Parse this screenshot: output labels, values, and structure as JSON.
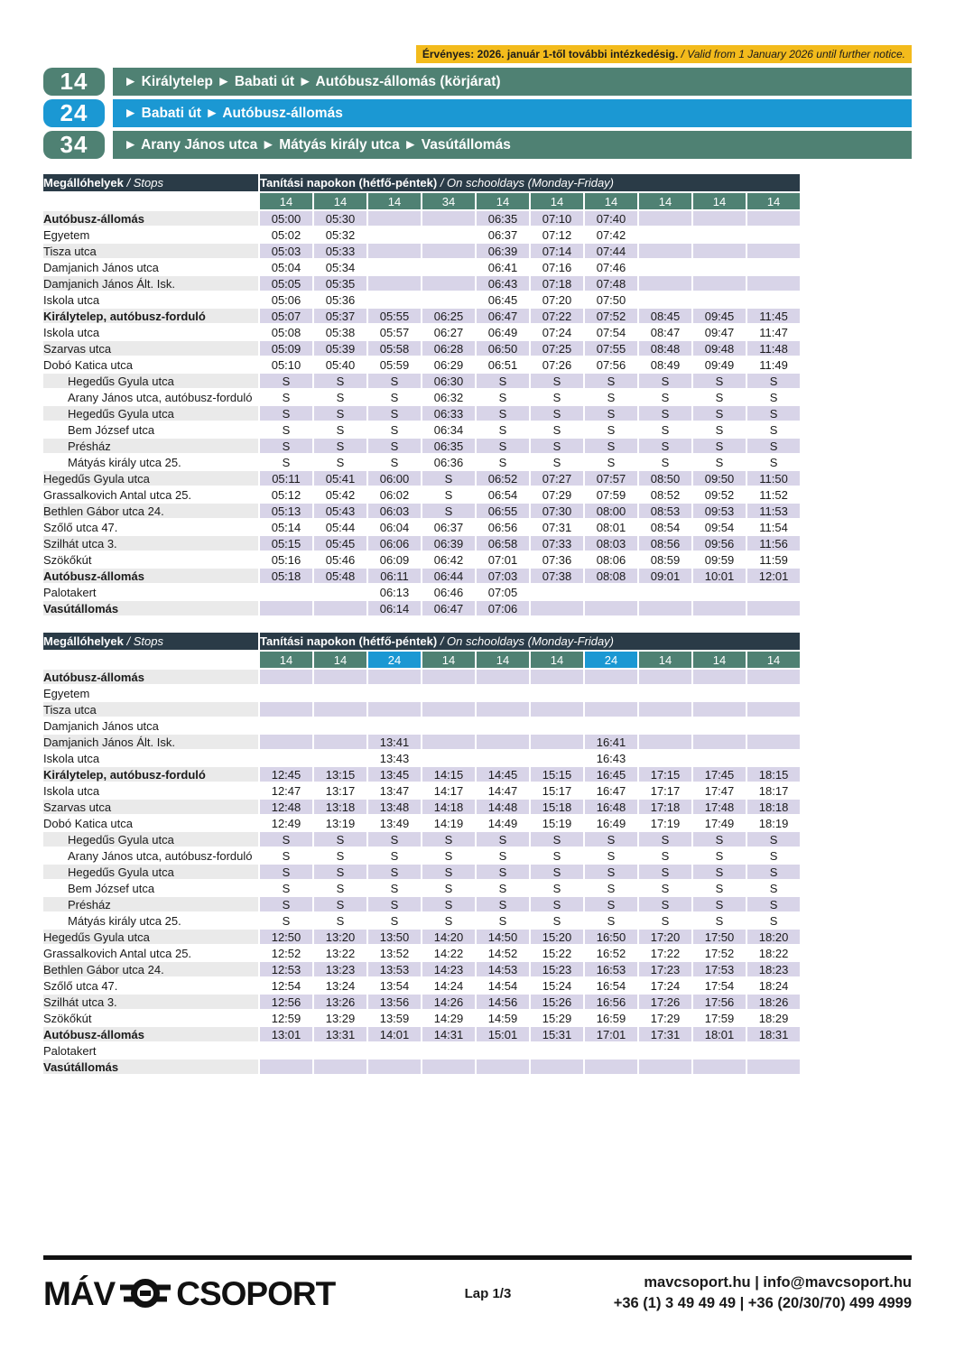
{
  "colors": {
    "teal": "#4F8173",
    "blue": "#1B98D3",
    "dark_header": "#2A3B47",
    "lavender": "#D8D4E8",
    "gray_row": "#EAEAEA",
    "banner_yellow": "#F3BB1C"
  },
  "banner": {
    "hu": "Érvényes: 2026. január 1-től további intézkedésig.",
    "en": " / Valid from 1 January 2026 until further notice."
  },
  "routes": [
    {
      "number": "14",
      "color": "teal",
      "label": "► Királytelep ► Babati út ► Autóbusz-állomás (körjárat)"
    },
    {
      "number": "24",
      "color": "blue",
      "label": "► Babati út ► Autóbusz-állomás"
    },
    {
      "number": "34",
      "color": "teal",
      "label": "► Arany János utca ► Mátyás király utca ► Vasútállomás"
    }
  ],
  "tables": [
    {
      "stops_header": {
        "hu": "Megállóhelyek",
        "en": " / Stops"
      },
      "days_header": {
        "hu": "Tanítási napokon (hétfő-péntek)",
        "en": " / On schooldays (Monday-Friday)"
      },
      "route_numbers": [
        {
          "label": "14",
          "color": "teal"
        },
        {
          "label": "14",
          "color": "teal"
        },
        {
          "label": "14",
          "color": "teal"
        },
        {
          "label": "34",
          "color": "teal"
        },
        {
          "label": "14",
          "color": "teal"
        },
        {
          "label": "14",
          "color": "teal"
        },
        {
          "label": "14",
          "color": "teal"
        },
        {
          "label": "14",
          "color": "teal"
        },
        {
          "label": "14",
          "color": "teal"
        },
        {
          "label": "14",
          "color": "teal"
        }
      ],
      "rows": [
        {
          "stop": "Autóbusz-állomás",
          "style": "bold",
          "times": [
            "05:00",
            "05:30",
            "",
            "",
            "06:35",
            "07:10",
            "07:40",
            "",
            "",
            ""
          ]
        },
        {
          "stop": "Egyetem",
          "style": "",
          "times": [
            "05:02",
            "05:32",
            "",
            "",
            "06:37",
            "07:12",
            "07:42",
            "",
            "",
            ""
          ]
        },
        {
          "stop": "Tisza utca",
          "style": "",
          "times": [
            "05:03",
            "05:33",
            "",
            "",
            "06:39",
            "07:14",
            "07:44",
            "",
            "",
            ""
          ]
        },
        {
          "stop": "Damjanich János utca",
          "style": "",
          "times": [
            "05:04",
            "05:34",
            "",
            "",
            "06:41",
            "07:16",
            "07:46",
            "",
            "",
            ""
          ]
        },
        {
          "stop": "Damjanich János Ált. Isk.",
          "style": "",
          "times": [
            "05:05",
            "05:35",
            "",
            "",
            "06:43",
            "07:18",
            "07:48",
            "",
            "",
            ""
          ]
        },
        {
          "stop": "Iskola utca",
          "style": "",
          "times": [
            "05:06",
            "05:36",
            "",
            "",
            "06:45",
            "07:20",
            "07:50",
            "",
            "",
            ""
          ]
        },
        {
          "stop": "Királytelep, autóbusz-forduló",
          "style": "bold",
          "times": [
            "05:07",
            "05:37",
            "05:55",
            "06:25",
            "06:47",
            "07:22",
            "07:52",
            "08:45",
            "09:45",
            "11:45"
          ]
        },
        {
          "stop": "Iskola utca",
          "style": "",
          "times": [
            "05:08",
            "05:38",
            "05:57",
            "06:27",
            "06:49",
            "07:24",
            "07:54",
            "08:47",
            "09:47",
            "11:47"
          ]
        },
        {
          "stop": "Szarvas utca",
          "style": "",
          "times": [
            "05:09",
            "05:39",
            "05:58",
            "06:28",
            "06:50",
            "07:25",
            "07:55",
            "08:48",
            "09:48",
            "11:48"
          ]
        },
        {
          "stop": "Dobó Katica utca",
          "style": "",
          "times": [
            "05:10",
            "05:40",
            "05:59",
            "06:29",
            "06:51",
            "07:26",
            "07:56",
            "08:49",
            "09:49",
            "11:49"
          ]
        },
        {
          "stop": "Hegedűs Gyula utca",
          "style": "indent",
          "times": [
            "S",
            "S",
            "S",
            "06:30",
            "S",
            "S",
            "S",
            "S",
            "S",
            "S"
          ]
        },
        {
          "stop": "Arany János utca, autóbusz-forduló",
          "style": "indent",
          "times": [
            "S",
            "S",
            "S",
            "06:32",
            "S",
            "S",
            "S",
            "S",
            "S",
            "S"
          ]
        },
        {
          "stop": "Hegedűs Gyula utca",
          "style": "indent",
          "times": [
            "S",
            "S",
            "S",
            "06:33",
            "S",
            "S",
            "S",
            "S",
            "S",
            "S"
          ]
        },
        {
          "stop": "Bem József utca",
          "style": "indent",
          "times": [
            "S",
            "S",
            "S",
            "06:34",
            "S",
            "S",
            "S",
            "S",
            "S",
            "S"
          ]
        },
        {
          "stop": "Présház",
          "style": "indent",
          "times": [
            "S",
            "S",
            "S",
            "06:35",
            "S",
            "S",
            "S",
            "S",
            "S",
            "S"
          ]
        },
        {
          "stop": "Mátyás király utca 25.",
          "style": "indent",
          "times": [
            "S",
            "S",
            "S",
            "06:36",
            "S",
            "S",
            "S",
            "S",
            "S",
            "S"
          ]
        },
        {
          "stop": "Hegedűs Gyula utca",
          "style": "",
          "times": [
            "05:11",
            "05:41",
            "06:00",
            "S",
            "06:52",
            "07:27",
            "07:57",
            "08:50",
            "09:50",
            "11:50"
          ]
        },
        {
          "stop": "Grassalkovich Antal utca 25.",
          "style": "",
          "times": [
            "05:12",
            "05:42",
            "06:02",
            "S",
            "06:54",
            "07:29",
            "07:59",
            "08:52",
            "09:52",
            "11:52"
          ]
        },
        {
          "stop": "Bethlen Gábor utca 24.",
          "style": "",
          "times": [
            "05:13",
            "05:43",
            "06:03",
            "S",
            "06:55",
            "07:30",
            "08:00",
            "08:53",
            "09:53",
            "11:53"
          ]
        },
        {
          "stop": "Szőlő utca 47.",
          "style": "",
          "times": [
            "05:14",
            "05:44",
            "06:04",
            "06:37",
            "06:56",
            "07:31",
            "08:01",
            "08:54",
            "09:54",
            "11:54"
          ]
        },
        {
          "stop": "Szilhát utca 3.",
          "style": "",
          "times": [
            "05:15",
            "05:45",
            "06:06",
            "06:39",
            "06:58",
            "07:33",
            "08:03",
            "08:56",
            "09:56",
            "11:56"
          ]
        },
        {
          "stop": "Szökőkút",
          "style": "",
          "times": [
            "05:16",
            "05:46",
            "06:09",
            "06:42",
            "07:01",
            "07:36",
            "08:06",
            "08:59",
            "09:59",
            "11:59"
          ]
        },
        {
          "stop": "Autóbusz-állomás",
          "style": "bold",
          "times": [
            "05:18",
            "05:48",
            "06:11",
            "06:44",
            "07:03",
            "07:38",
            "08:08",
            "09:01",
            "10:01",
            "12:01"
          ]
        },
        {
          "stop": "Palotakert",
          "style": "",
          "times": [
            "",
            "",
            "06:13",
            "06:46",
            "07:05",
            "",
            "",
            "",
            "",
            ""
          ]
        },
        {
          "stop": "Vasútállomás",
          "style": "bold",
          "times": [
            "",
            "",
            "06:14",
            "06:47",
            "07:06",
            "",
            "",
            "",
            "",
            ""
          ]
        }
      ]
    },
    {
      "stops_header": {
        "hu": "Megállóhelyek",
        "en": " / Stops"
      },
      "days_header": {
        "hu": "Tanítási napokon (hétfő-péntek)",
        "en": " / On schooldays (Monday-Friday)"
      },
      "route_numbers": [
        {
          "label": "14",
          "color": "teal"
        },
        {
          "label": "14",
          "color": "teal"
        },
        {
          "label": "24",
          "color": "blue"
        },
        {
          "label": "14",
          "color": "teal"
        },
        {
          "label": "14",
          "color": "teal"
        },
        {
          "label": "14",
          "color": "teal"
        },
        {
          "label": "24",
          "color": "blue"
        },
        {
          "label": "14",
          "color": "teal"
        },
        {
          "label": "14",
          "color": "teal"
        },
        {
          "label": "14",
          "color": "teal"
        }
      ],
      "rows": [
        {
          "stop": "Autóbusz-állomás",
          "style": "bold",
          "times": [
            "",
            "",
            "",
            "",
            "",
            "",
            "",
            "",
            "",
            ""
          ]
        },
        {
          "stop": "Egyetem",
          "style": "",
          "times": [
            "",
            "",
            "",
            "",
            "",
            "",
            "",
            "",
            "",
            ""
          ]
        },
        {
          "stop": "Tisza utca",
          "style": "",
          "times": [
            "",
            "",
            "",
            "",
            "",
            "",
            "",
            "",
            "",
            ""
          ]
        },
        {
          "stop": "Damjanich János utca",
          "style": "",
          "times": [
            "",
            "",
            "",
            "",
            "",
            "",
            "",
            "",
            "",
            ""
          ]
        },
        {
          "stop": "Damjanich János Ált. Isk.",
          "style": "",
          "times": [
            "",
            "",
            "13:41",
            "",
            "",
            "",
            "16:41",
            "",
            "",
            ""
          ]
        },
        {
          "stop": "Iskola utca",
          "style": "",
          "times": [
            "",
            "",
            "13:43",
            "",
            "",
            "",
            "16:43",
            "",
            "",
            ""
          ]
        },
        {
          "stop": "Királytelep, autóbusz-forduló",
          "style": "bold",
          "times": [
            "12:45",
            "13:15",
            "13:45",
            "14:15",
            "14:45",
            "15:15",
            "16:45",
            "17:15",
            "17:45",
            "18:15"
          ]
        },
        {
          "stop": "Iskola utca",
          "style": "",
          "times": [
            "12:47",
            "13:17",
            "13:47",
            "14:17",
            "14:47",
            "15:17",
            "16:47",
            "17:17",
            "17:47",
            "18:17"
          ]
        },
        {
          "stop": "Szarvas utca",
          "style": "",
          "times": [
            "12:48",
            "13:18",
            "13:48",
            "14:18",
            "14:48",
            "15:18",
            "16:48",
            "17:18",
            "17:48",
            "18:18"
          ]
        },
        {
          "stop": "Dobó Katica utca",
          "style": "",
          "times": [
            "12:49",
            "13:19",
            "13:49",
            "14:19",
            "14:49",
            "15:19",
            "16:49",
            "17:19",
            "17:49",
            "18:19"
          ]
        },
        {
          "stop": "Hegedűs Gyula utca",
          "style": "indent",
          "times": [
            "S",
            "S",
            "S",
            "S",
            "S",
            "S",
            "S",
            "S",
            "S",
            "S"
          ]
        },
        {
          "stop": "Arany János utca, autóbusz-forduló",
          "style": "indent",
          "times": [
            "S",
            "S",
            "S",
            "S",
            "S",
            "S",
            "S",
            "S",
            "S",
            "S"
          ]
        },
        {
          "stop": "Hegedűs Gyula utca",
          "style": "indent",
          "times": [
            "S",
            "S",
            "S",
            "S",
            "S",
            "S",
            "S",
            "S",
            "S",
            "S"
          ]
        },
        {
          "stop": "Bem József utca",
          "style": "indent",
          "times": [
            "S",
            "S",
            "S",
            "S",
            "S",
            "S",
            "S",
            "S",
            "S",
            "S"
          ]
        },
        {
          "stop": "Présház",
          "style": "indent",
          "times": [
            "S",
            "S",
            "S",
            "S",
            "S",
            "S",
            "S",
            "S",
            "S",
            "S"
          ]
        },
        {
          "stop": "Mátyás király utca 25.",
          "style": "indent",
          "times": [
            "S",
            "S",
            "S",
            "S",
            "S",
            "S",
            "S",
            "S",
            "S",
            "S"
          ]
        },
        {
          "stop": "Hegedűs Gyula utca",
          "style": "",
          "times": [
            "12:50",
            "13:20",
            "13:50",
            "14:20",
            "14:50",
            "15:20",
            "16:50",
            "17:20",
            "17:50",
            "18:20"
          ]
        },
        {
          "stop": "Grassalkovich Antal utca 25.",
          "style": "",
          "times": [
            "12:52",
            "13:22",
            "13:52",
            "14:22",
            "14:52",
            "15:22",
            "16:52",
            "17:22",
            "17:52",
            "18:22"
          ]
        },
        {
          "stop": "Bethlen Gábor utca 24.",
          "style": "",
          "times": [
            "12:53",
            "13:23",
            "13:53",
            "14:23",
            "14:53",
            "15:23",
            "16:53",
            "17:23",
            "17:53",
            "18:23"
          ]
        },
        {
          "stop": "Szőlő utca 47.",
          "style": "",
          "times": [
            "12:54",
            "13:24",
            "13:54",
            "14:24",
            "14:54",
            "15:24",
            "16:54",
            "17:24",
            "17:54",
            "18:24"
          ]
        },
        {
          "stop": "Szilhát utca 3.",
          "style": "",
          "times": [
            "12:56",
            "13:26",
            "13:56",
            "14:26",
            "14:56",
            "15:26",
            "16:56",
            "17:26",
            "17:56",
            "18:26"
          ]
        },
        {
          "stop": "Szökőkút",
          "style": "",
          "times": [
            "12:59",
            "13:29",
            "13:59",
            "14:29",
            "14:59",
            "15:29",
            "16:59",
            "17:29",
            "17:59",
            "18:29"
          ]
        },
        {
          "stop": "Autóbusz-állomás",
          "style": "bold",
          "times": [
            "13:01",
            "13:31",
            "14:01",
            "14:31",
            "15:01",
            "15:31",
            "17:01",
            "17:31",
            "18:01",
            "18:31"
          ]
        },
        {
          "stop": "Palotakert",
          "style": "",
          "times": [
            "",
            "",
            "",
            "",
            "",
            "",
            "",
            "",
            "",
            ""
          ]
        },
        {
          "stop": "Vasútállomás",
          "style": "bold",
          "times": [
            "",
            "",
            "",
            "",
            "",
            "",
            "",
            "",
            "",
            ""
          ]
        }
      ]
    }
  ],
  "footer": {
    "logo_left": "MÁV",
    "logo_right": "CSOPORT",
    "page": "Lap 1/3",
    "contact_line1": "mavcsoport.hu | info@mavcsoport.hu",
    "contact_line2": "+36 (1) 3 49 49 49 | +36 (20/30/70) 499 4999"
  }
}
